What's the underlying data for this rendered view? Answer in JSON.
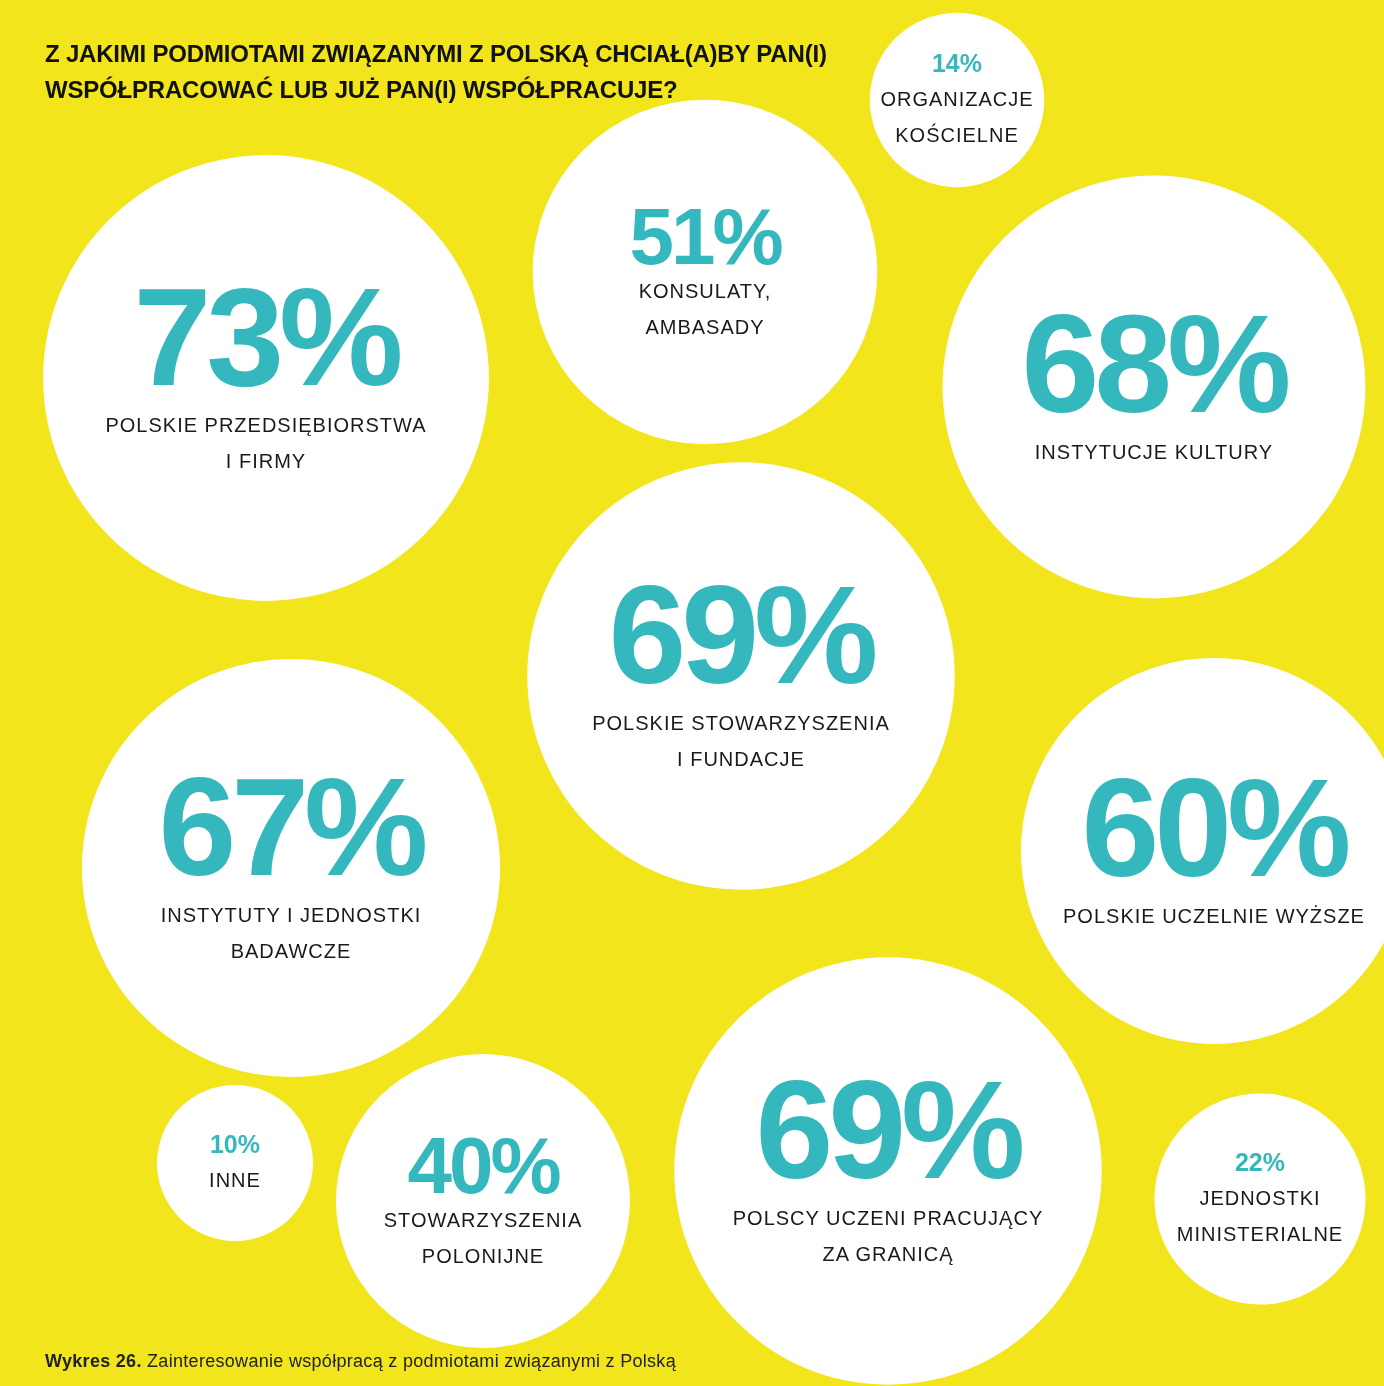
{
  "chart_data": {
    "type": "other",
    "title": "Z JAKIMI PODMIOTAMI ZWIĄZANYMI Z POLSKĄ CHCIAŁ(A)BY PAN(I) WSPÓŁPRACOWAĆ LUB JUŻ PAN(I) WSPÓŁPRACUJE?",
    "categories": [
      "POLSKIE PRZEDSIĘBIORSTWA\nI FIRMY",
      "KONSULATY,\nAMBASADY",
      "ORGANIZACJE\nKOŚCIELNE",
      "INSTYTUCJE KULTURY",
      "INSTYTUTY I JEDNOSTKI\nBADAWCZE",
      "POLSKIE STOWARZYSZENIA\nI FUNDACJE",
      "POLSKIE UCZELNIE WYŻSZE",
      "INNE",
      "STOWARZYSZENIA\nPOLONIJNE",
      "POLSCY UCZENI PRACUJĄCY\nZA GRANICĄ",
      "JEDNOSTKI\nMINISTERIALNE"
    ],
    "values": [
      73,
      51,
      14,
      68,
      67,
      69,
      60,
      10,
      40,
      69,
      22
    ],
    "value_labels": [
      "73%",
      "51%",
      "14%",
      "68%",
      "67%",
      "69%",
      "60%",
      "10%",
      "40%",
      "69%",
      "22%"
    ],
    "annotations": [
      "Wykres 26.",
      "Zainteresowanie współpracą z podmiotami związanymi z Polską"
    ]
  }
}
